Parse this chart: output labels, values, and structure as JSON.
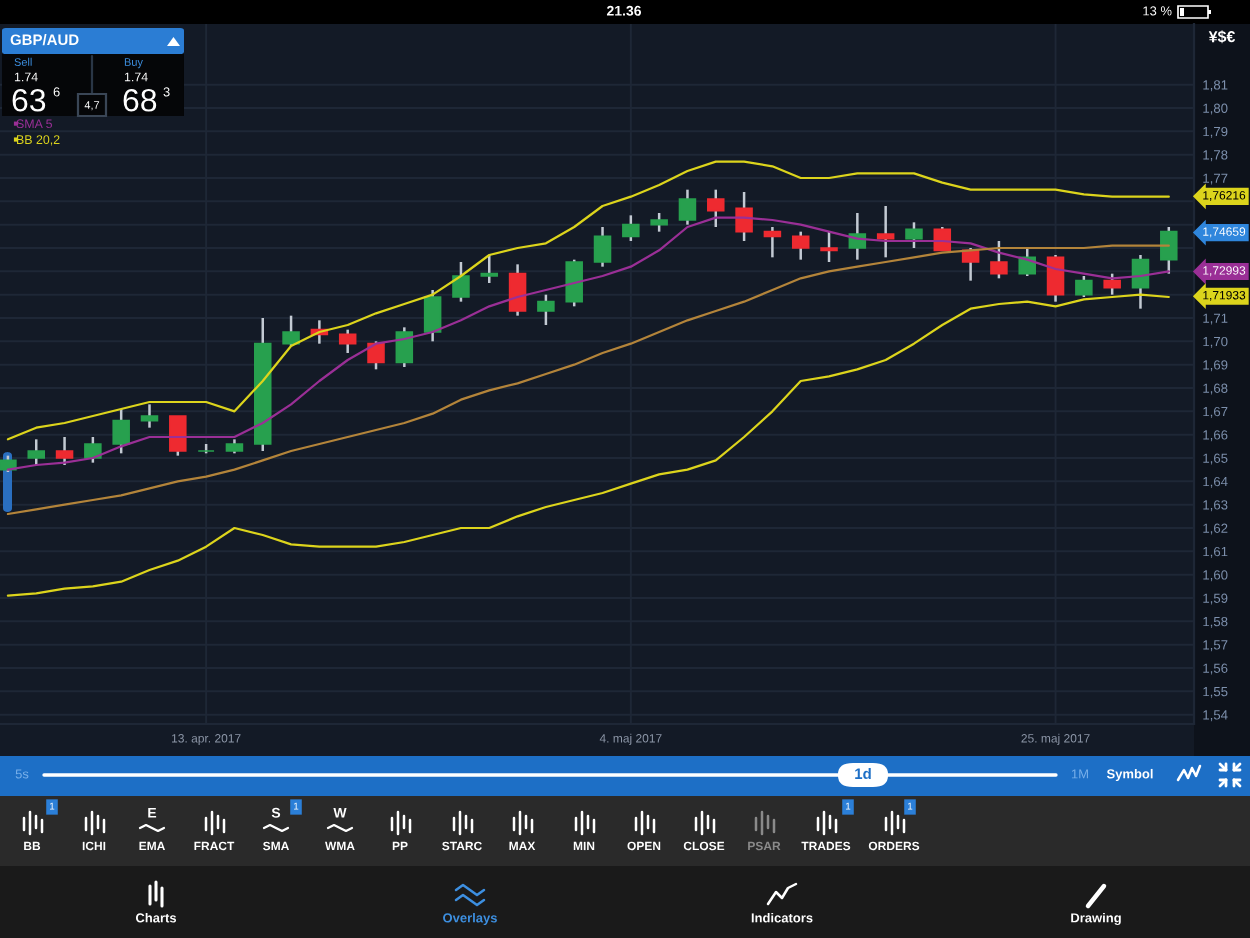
{
  "chart_data": {
    "type": "candlestick",
    "title": "GBP/AUD",
    "categories": [
      null,
      null,
      null,
      null,
      null,
      null,
      null,
      "13. apr. 2017",
      null,
      null,
      null,
      null,
      null,
      null,
      null,
      null,
      null,
      null,
      null,
      null,
      null,
      null,
      "4. maj 2017",
      null,
      null,
      null,
      null,
      null,
      null,
      null,
      null,
      null,
      null,
      null,
      null,
      null,
      null,
      "25. maj 2017",
      null,
      null,
      null,
      null
    ],
    "ohlc": [
      [
        1.645,
        1.651,
        1.644,
        1.649
      ],
      [
        1.65,
        1.658,
        1.647,
        1.653
      ],
      [
        1.653,
        1.659,
        1.647,
        1.65
      ],
      [
        1.65,
        1.659,
        1.648,
        1.656
      ],
      [
        1.656,
        1.671,
        1.652,
        1.666
      ],
      [
        1.666,
        1.673,
        1.663,
        1.668
      ],
      [
        1.668,
        1.668,
        1.651,
        1.653
      ],
      [
        1.653,
        1.656,
        1.652,
        1.653
      ],
      [
        1.653,
        1.658,
        1.652,
        1.656
      ],
      [
        1.656,
        1.71,
        1.653,
        1.699
      ],
      [
        1.699,
        1.711,
        1.698,
        1.704
      ],
      [
        1.705,
        1.709,
        1.699,
        1.703
      ],
      [
        1.703,
        1.705,
        1.695,
        1.699
      ],
      [
        1.699,
        1.7,
        1.688,
        1.691
      ],
      [
        1.691,
        1.706,
        1.689,
        1.704
      ],
      [
        1.704,
        1.722,
        1.7,
        1.719
      ],
      [
        1.719,
        1.734,
        1.717,
        1.728
      ],
      [
        1.728,
        1.737,
        1.725,
        1.729
      ],
      [
        1.729,
        1.733,
        1.711,
        1.713
      ],
      [
        1.713,
        1.72,
        1.707,
        1.717
      ],
      [
        1.717,
        1.735,
        1.715,
        1.734
      ],
      [
        1.734,
        1.749,
        1.732,
        1.745
      ],
      [
        1.745,
        1.754,
        1.743,
        1.75
      ],
      [
        1.75,
        1.755,
        1.747,
        1.752
      ],
      [
        1.752,
        1.765,
        1.75,
        1.761
      ],
      [
        1.761,
        1.765,
        1.749,
        1.756
      ],
      [
        1.757,
        1.764,
        1.743,
        1.747
      ],
      [
        1.747,
        1.749,
        1.736,
        1.745
      ],
      [
        1.745,
        1.747,
        1.735,
        1.74
      ],
      [
        1.74,
        1.747,
        1.734,
        1.739
      ],
      [
        1.74,
        1.755,
        1.735,
        1.746
      ],
      [
        1.746,
        1.758,
        1.736,
        1.744
      ],
      [
        1.744,
        1.751,
        1.74,
        1.748
      ],
      [
        1.748,
        1.749,
        1.739,
        1.739
      ],
      [
        1.739,
        1.74,
        1.726,
        1.734
      ],
      [
        1.734,
        1.743,
        1.727,
        1.729
      ],
      [
        1.729,
        1.74,
        1.728,
        1.736
      ],
      [
        1.736,
        1.737,
        1.717,
        1.72
      ],
      [
        1.72,
        1.728,
        1.719,
        1.726
      ],
      [
        1.726,
        1.729,
        1.72,
        1.723
      ],
      [
        1.723,
        1.737,
        1.714,
        1.735
      ],
      [
        1.735,
        1.749,
        1.729,
        1.747
      ]
    ],
    "colors": [
      "#27a04e",
      "#27a04e",
      "#ee2a30",
      "#27a04e",
      "#27a04e",
      "#27a04e",
      "#ee2a30",
      "#27a04e",
      "#27a04e",
      "#27a04e",
      "#27a04e",
      "#ee2a30",
      "#ee2a30",
      "#ee2a30",
      "#27a04e",
      "#27a04e",
      "#27a04e",
      "#27a04e",
      "#ee2a30",
      "#27a04e",
      "#27a04e",
      "#27a04e",
      "#27a04e",
      "#27a04e",
      "#27a04e",
      "#ee2a30",
      "#ee2a30",
      "#ee2a30",
      "#ee2a30",
      "#ee2a30",
      "#27a04e",
      "#ee2a30",
      "#27a04e",
      "#ee2a30",
      "#ee2a30",
      "#ee2a30",
      "#27a04e",
      "#ee2a30",
      "#27a04e",
      "#ee2a30",
      "#27a04e",
      "#27a04e"
    ],
    "series": [
      {
        "name": "SMA 5",
        "type": "line",
        "color": "#9a2f96",
        "values": [
          1.645,
          1.647,
          1.648,
          1.65,
          1.655,
          1.659,
          1.659,
          1.659,
          1.659,
          1.665,
          1.673,
          1.683,
          1.692,
          1.699,
          1.701,
          1.704,
          1.709,
          1.715,
          1.719,
          1.722,
          1.725,
          1.728,
          1.732,
          1.739,
          1.749,
          1.753,
          1.753,
          1.752,
          1.75,
          1.747,
          1.744,
          1.743,
          1.743,
          1.743,
          1.742,
          1.738,
          1.735,
          1.731,
          1.729,
          1.727,
          1.728,
          1.73
        ]
      },
      {
        "name": "BB 20,2",
        "type": "line",
        "color": "#dcd41c",
        "values": [
          1.658,
          1.663,
          1.665,
          1.668,
          1.671,
          1.674,
          1.674,
          1.674,
          1.67,
          1.683,
          1.698,
          1.704,
          1.707,
          1.712,
          1.716,
          1.72,
          1.728,
          1.737,
          1.74,
          1.742,
          1.749,
          1.758,
          1.762,
          1.767,
          1.773,
          1.777,
          1.777,
          1.775,
          1.77,
          1.77,
          1.772,
          1.772,
          1.772,
          1.768,
          1.765,
          1.765,
          1.765,
          1.765,
          1.763,
          1.762,
          1.762,
          1.762
        ]
      },
      {
        "type": "line",
        "color": "#b3843a",
        "values": [
          1.626,
          1.628,
          1.63,
          1.632,
          1.634,
          1.637,
          1.64,
          1.642,
          1.645,
          1.649,
          1.653,
          1.656,
          1.659,
          1.662,
          1.665,
          1.669,
          1.675,
          1.679,
          1.682,
          1.686,
          1.69,
          1.695,
          1.699,
          1.704,
          1.709,
          1.713,
          1.717,
          1.722,
          1.727,
          1.73,
          1.732,
          1.734,
          1.736,
          1.738,
          1.739,
          1.74,
          1.74,
          1.74,
          1.74,
          1.741,
          1.741,
          1.741
        ]
      },
      {
        "type": "line",
        "color": "#dcd41c",
        "values": [
          1.591,
          1.592,
          1.594,
          1.595,
          1.597,
          1.602,
          1.606,
          1.612,
          1.62,
          1.617,
          1.613,
          1.612,
          1.612,
          1.612,
          1.614,
          1.617,
          1.62,
          1.62,
          1.625,
          1.629,
          1.632,
          1.635,
          1.639,
          1.643,
          1.645,
          1.649,
          1.659,
          1.67,
          1.683,
          1.685,
          1.688,
          1.692,
          1.699,
          1.707,
          1.714,
          1.716,
          1.717,
          1.715,
          1.718,
          1.719,
          1.72,
          1.719
        ]
      }
    ],
    "ylim": [
      1.536,
      1.836
    ],
    "yticks": [
      {
        "value": 1.54,
        "label": "1,54"
      },
      {
        "value": 1.55,
        "label": "1,55"
      },
      {
        "value": 1.56,
        "label": "1,56"
      },
      {
        "value": 1.57,
        "label": "1,57"
      },
      {
        "value": 1.58,
        "label": "1,58"
      },
      {
        "value": 1.59,
        "label": "1,59"
      },
      {
        "value": 1.6,
        "label": "1,60"
      },
      {
        "value": 1.61,
        "label": "1,61"
      },
      {
        "value": 1.62,
        "label": "1,62"
      },
      {
        "value": 1.63,
        "label": "1,63"
      },
      {
        "value": 1.64,
        "label": "1,64"
      },
      {
        "value": 1.65,
        "label": "1,65"
      },
      {
        "value": 1.66,
        "label": "1,66"
      },
      {
        "value": 1.67,
        "label": "1,67"
      },
      {
        "value": 1.68,
        "label": "1,68"
      },
      {
        "value": 1.69,
        "label": "1,69"
      },
      {
        "value": 1.7,
        "label": "1,70"
      },
      {
        "value": 1.71,
        "label": "1,71"
      },
      {
        "value": 1.72,
        "label": null
      },
      {
        "value": 1.73,
        "label": null
      },
      {
        "value": 1.74,
        "label": null
      },
      {
        "value": 1.75,
        "label": null
      },
      {
        "value": 1.76,
        "label": null
      },
      {
        "value": 1.77,
        "label": "1,77"
      },
      {
        "value": 1.78,
        "label": "1,78"
      },
      {
        "value": 1.79,
        "label": "1,79"
      },
      {
        "value": 1.8,
        "label": "1,80"
      },
      {
        "value": 1.81,
        "label": "1,81"
      }
    ],
    "grid": true,
    "legend": "top left",
    "annotations": [
      "21.36",
      "13 %",
      "Sell",
      "1.74",
      "63",
      "6",
      "4,7",
      "Buy",
      "1.74",
      "68",
      "3",
      "¥$€",
      "5s",
      "1d",
      "1M",
      "Symbol",
      "BB",
      "ICHI",
      "EMA",
      "FRACT",
      "SMA",
      "WMA",
      "PP",
      "STARC",
      "MAX",
      "MIN",
      "OPEN",
      "CLOSE",
      "PSAR",
      "TRADES",
      "ORDERS",
      "1",
      "1",
      "1",
      "1",
      "E",
      "S",
      "W",
      "Charts",
      "Overlays",
      "Indicators",
      "Drawing",
      {
        "text": "1,76216",
        "y": 1.76216
      },
      {
        "text": "1,74659",
        "y": 1.74659
      },
      {
        "text": "1,72993",
        "y": 1.72993
      },
      {
        "text": "1,71933",
        "y": 1.71933
      }
    ]
  }
}
